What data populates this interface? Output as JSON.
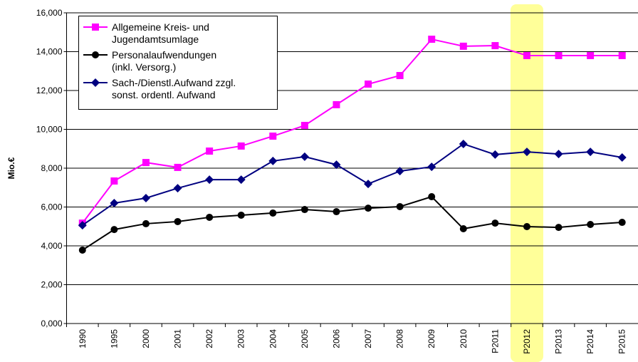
{
  "chart_data": {
    "type": "line",
    "y_label": "Mio.€",
    "categories": [
      "1990",
      "1995",
      "2000",
      "2001",
      "2002",
      "2003",
      "2004",
      "2005",
      "2006",
      "2007",
      "2008",
      "2009",
      "2010",
      "P2011",
      "P2012",
      "P2013",
      "P2014",
      "P2015"
    ],
    "series": [
      {
        "name": "Allgemeine Kreis- und\nJugendamtsumlage",
        "color": "#ff00ff",
        "marker": "square",
        "values": [
          5170,
          7340,
          8290,
          8040,
          8880,
          9140,
          9650,
          10200,
          11270,
          12330,
          12770,
          14640,
          14280,
          14310,
          13800,
          13800,
          13800,
          13800
        ]
      },
      {
        "name": "Personalaufwendungen\n(inkl. Versorg.)",
        "color": "#000000",
        "marker": "circle",
        "values": [
          3780,
          4840,
          5140,
          5250,
          5470,
          5580,
          5690,
          5870,
          5760,
          5940,
          6020,
          6530,
          4880,
          5170,
          4990,
          4950,
          5100,
          5210
        ]
      },
      {
        "name": "Sach-/Dienstl.Aufwand zzgl.\nsonst. ordentl. Aufwand",
        "color": "#000080",
        "marker": "diamond",
        "values": [
          5060,
          6200,
          6460,
          6970,
          7410,
          7410,
          8370,
          8590,
          8180,
          7190,
          7850,
          8070,
          9250,
          8700,
          8840,
          8730,
          8840,
          8550
        ]
      }
    ],
    "ylim": [
      0,
      16000
    ],
    "yticks": [
      {
        "value": 0,
        "label": "0,000"
      },
      {
        "value": 2000,
        "label": "2,000"
      },
      {
        "value": 4000,
        "label": "4,000"
      },
      {
        "value": 6000,
        "label": "6,000"
      },
      {
        "value": 8000,
        "label": "8,000"
      },
      {
        "value": 10000,
        "label": "10,000"
      },
      {
        "value": 12000,
        "label": "12,000"
      },
      {
        "value": 14000,
        "label": "14,000"
      },
      {
        "value": 16000,
        "label": "16,000"
      }
    ],
    "grid": true,
    "highlight": {
      "index": 14,
      "color": "#ffff99"
    }
  }
}
